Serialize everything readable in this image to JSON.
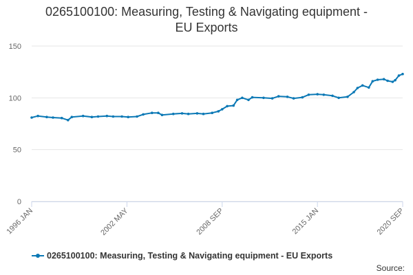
{
  "chart_data": {
    "type": "line",
    "title": "0265100100: Measuring, Testing & Navigating equipment -\nEU Exports",
    "y_ticks": [
      0,
      50,
      100,
      150
    ],
    "ylim": [
      0,
      150
    ],
    "x_tick_labels": [
      "1996 JAN",
      "2002 MAY",
      "2008 SEP",
      "2015 JAN",
      "2020 SEP"
    ],
    "x_range": [
      "1996-01",
      "2020-09"
    ],
    "grid": "horizontal",
    "legend_position": "bottom-left",
    "color": "#0a78b5",
    "series": [
      {
        "name": "0265100100: Measuring, Testing & Navigating equipment - EU Exports",
        "points": [
          [
            "1996-01",
            81
          ],
          [
            "1996-06",
            82.5
          ],
          [
            "1997-01",
            81.5
          ],
          [
            "1997-06",
            81
          ],
          [
            "1998-01",
            80.5
          ],
          [
            "1998-06",
            78.5
          ],
          [
            "1998-09",
            81.5
          ],
          [
            "1999-06",
            82.5
          ],
          [
            "2000-01",
            81.5
          ],
          [
            "2000-06",
            82
          ],
          [
            "2001-01",
            82.5
          ],
          [
            "2001-06",
            82
          ],
          [
            "2002-01",
            82
          ],
          [
            "2002-06",
            81.5
          ],
          [
            "2003-01",
            82
          ],
          [
            "2003-06",
            84
          ],
          [
            "2004-01",
            85.5
          ],
          [
            "2004-06",
            85.5
          ],
          [
            "2004-09",
            83.5
          ],
          [
            "2005-06",
            84.5
          ],
          [
            "2006-01",
            85
          ],
          [
            "2006-06",
            84.5
          ],
          [
            "2007-01",
            85
          ],
          [
            "2007-06",
            84.5
          ],
          [
            "2008-01",
            85.5
          ],
          [
            "2008-06",
            87
          ],
          [
            "2008-09",
            89
          ],
          [
            "2009-01",
            92
          ],
          [
            "2009-06",
            92.5
          ],
          [
            "2009-09",
            98
          ],
          [
            "2010-01",
            100
          ],
          [
            "2010-06",
            98
          ],
          [
            "2010-09",
            100.5
          ],
          [
            "2011-06",
            100
          ],
          [
            "2012-01",
            99.5
          ],
          [
            "2012-06",
            101.5
          ],
          [
            "2013-01",
            101
          ],
          [
            "2013-06",
            99.5
          ],
          [
            "2014-01",
            100.5
          ],
          [
            "2014-06",
            103
          ],
          [
            "2015-01",
            103.5
          ],
          [
            "2015-06",
            103
          ],
          [
            "2016-01",
            102
          ],
          [
            "2016-06",
            100
          ],
          [
            "2017-01",
            101
          ],
          [
            "2017-06",
            105.5
          ],
          [
            "2017-09",
            109.5
          ],
          [
            "2018-01",
            112
          ],
          [
            "2018-06",
            110
          ],
          [
            "2018-09",
            116
          ],
          [
            "2019-01",
            117.5
          ],
          [
            "2019-06",
            118
          ],
          [
            "2019-09",
            116.5
          ],
          [
            "2020-01",
            115.5
          ],
          [
            "2020-03",
            117
          ],
          [
            "2020-06",
            121.5
          ],
          [
            "2020-09",
            123
          ]
        ]
      }
    ],
    "source_label": "Source:"
  }
}
